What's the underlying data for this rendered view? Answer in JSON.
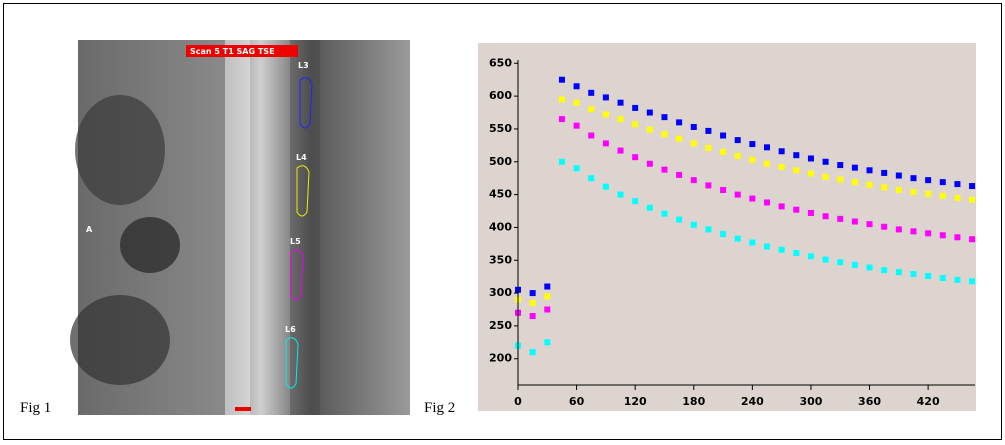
{
  "figure": {
    "fig1_label": "Fig 1",
    "fig2_label": "Fig 2",
    "scan_title": "Scan 5 T1 SAG TSE",
    "roi_labels": [
      "L3",
      "L4",
      "L5",
      "L6"
    ],
    "orientation_label": "A"
  },
  "chart_data": {
    "type": "scatter",
    "x": [
      0,
      15,
      30,
      45,
      60,
      75,
      90,
      105,
      120,
      135,
      150,
      165,
      180,
      195,
      210,
      225,
      240,
      255,
      270,
      285,
      300,
      315,
      330,
      345,
      360,
      375,
      390,
      405,
      420,
      435,
      450,
      465
    ],
    "series": [
      {
        "color": "#0000ff",
        "values": [
          305,
          300,
          310,
          625,
          615,
          605,
          598,
          590,
          582,
          575,
          568,
          560,
          553,
          547,
          540,
          533,
          527,
          522,
          516,
          510,
          505,
          500,
          495,
          491,
          487,
          483,
          479,
          475,
          472,
          469,
          466,
          463
        ]
      },
      {
        "color": "#ffff00",
        "values": [
          290,
          285,
          295,
          595,
          590,
          580,
          572,
          565,
          557,
          549,
          542,
          535,
          528,
          521,
          515,
          509,
          503,
          497,
          492,
          487,
          482,
          477,
          473,
          469,
          465,
          461,
          457,
          454,
          451,
          448,
          445,
          442
        ]
      },
      {
        "color": "#ff00ff",
        "values": [
          270,
          265,
          275,
          565,
          555,
          540,
          528,
          517,
          507,
          497,
          488,
          480,
          472,
          464,
          457,
          450,
          444,
          438,
          432,
          427,
          422,
          417,
          413,
          409,
          405,
          401,
          397,
          394,
          391,
          388,
          385,
          382
        ]
      },
      {
        "color": "#00ffff",
        "values": [
          220,
          210,
          225,
          500,
          490,
          475,
          462,
          450,
          440,
          430,
          421,
          412,
          404,
          397,
          390,
          383,
          377,
          371,
          366,
          361,
          356,
          351,
          347,
          343,
          339,
          335,
          332,
          329,
          326,
          323,
          320,
          318
        ]
      }
    ],
    "xlim": [
      0,
      468
    ],
    "ylim": [
      160,
      655
    ],
    "xticks": [
      0,
      60,
      120,
      180,
      240,
      300,
      360,
      420
    ],
    "yticks": [
      200,
      250,
      300,
      350,
      400,
      450,
      500,
      550,
      600,
      650
    ]
  }
}
